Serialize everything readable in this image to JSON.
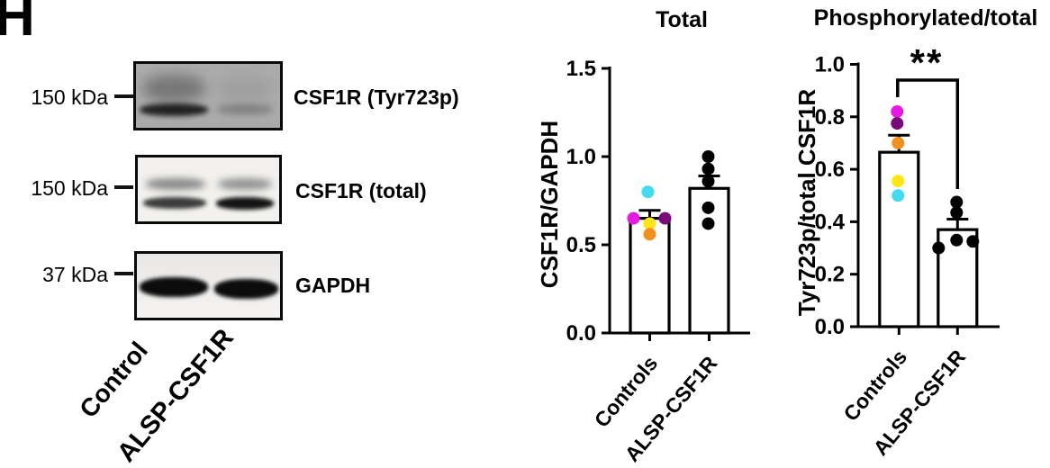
{
  "panel_label": "H",
  "western_blot": {
    "rows": [
      {
        "marker": "150 kDa",
        "label": "CSF1R (Tyr723p)"
      },
      {
        "marker": "150 kDa",
        "label": "CSF1R (total)"
      },
      {
        "marker": "37 kDa",
        "label": "GAPDH"
      }
    ],
    "lane_labels": [
      "Control",
      "ALSP-CSF1R"
    ]
  },
  "chart_data": [
    {
      "type": "bar",
      "title": "Total",
      "ylabel": "CSF1R/GAPDH",
      "categories": [
        "Controls",
        "ALSP-CSF1R"
      ],
      "ylim": [
        0,
        1.5
      ],
      "yticks": [
        "0.0",
        "0.5",
        "1.0",
        "1.5"
      ],
      "grid": false,
      "bars": [
        {
          "category": "Controls",
          "mean": 0.65,
          "sem": 0.045,
          "points": [
            {
              "value": 0.8,
              "color": "#45D9EE",
              "dx": -2
            },
            {
              "value": 0.65,
              "color": "#E31BE3",
              "dx": -18
            },
            {
              "value": 0.65,
              "color": "#7A0C7A",
              "dx": 17
            },
            {
              "value": 0.62,
              "color": "#FFE418",
              "dx": 0
            },
            {
              "value": 0.56,
              "color": "#F2901F",
              "dx": 0
            }
          ]
        },
        {
          "category": "ALSP-CSF1R",
          "mean": 0.82,
          "sem": 0.07,
          "points": [
            {
              "value": 1.0,
              "color": "#000000",
              "dx": -1
            },
            {
              "value": 0.93,
              "color": "#000000",
              "dx": -1
            },
            {
              "value": 0.86,
              "color": "#000000",
              "dx": -1
            },
            {
              "value": 0.71,
              "color": "#000000",
              "dx": -1
            },
            {
              "value": 0.62,
              "color": "#000000",
              "dx": -1
            }
          ]
        }
      ]
    },
    {
      "type": "bar",
      "title": "Phosphorylated/total",
      "ylabel": "Tyr723p/total CSF1R",
      "categories": [
        "Controls",
        "ALSP-CSF1R"
      ],
      "ylim": [
        0,
        1.0
      ],
      "yticks": [
        "0.0",
        "0.2",
        "0.4",
        "0.6",
        "0.8",
        "1.0"
      ],
      "grid": false,
      "bars": [
        {
          "category": "Controls",
          "mean": 0.665,
          "sem": 0.065,
          "points": [
            {
              "value": 0.82,
              "color": "#E31BE3",
              "dx": -2
            },
            {
              "value": 0.775,
              "color": "#7A0C7A",
              "dx": -2
            },
            {
              "value": 0.7,
              "color": "#F2901F",
              "dx": -1
            },
            {
              "value": 0.555,
              "color": "#FFE418",
              "dx": -1
            },
            {
              "value": 0.5,
              "color": "#45D9EE",
              "dx": -1
            }
          ]
        },
        {
          "category": "ALSP-CSF1R",
          "mean": 0.37,
          "sem": 0.04,
          "points": [
            {
              "value": 0.475,
              "color": "#000000",
              "dx": -1
            },
            {
              "value": 0.435,
              "color": "#000000",
              "dx": -1
            },
            {
              "value": 0.33,
              "color": "#000000",
              "dx": -1
            },
            {
              "value": 0.3,
              "color": "#000000",
              "dx": -21
            },
            {
              "value": 0.325,
              "color": "#000000",
              "dx": 17
            }
          ]
        }
      ],
      "significance": {
        "label": "**",
        "bracket_y": 0.94,
        "left_end": 0.875,
        "right_end": 0.525
      }
    }
  ]
}
